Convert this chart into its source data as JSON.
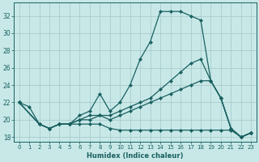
{
  "background_color": "#c8e8e8",
  "grid_color": "#a8cccc",
  "line_color": "#1a6060",
  "xlabel": "Humidex (Indice chaleur)",
  "xlim": [
    -0.5,
    23.5
  ],
  "ylim": [
    17.5,
    33.5
  ],
  "yticks": [
    18,
    20,
    22,
    24,
    26,
    28,
    30,
    32
  ],
  "xticks": [
    0,
    1,
    2,
    3,
    4,
    5,
    6,
    7,
    8,
    9,
    10,
    11,
    12,
    13,
    14,
    15,
    16,
    17,
    18,
    19,
    20,
    21,
    22,
    23
  ],
  "series": [
    {
      "x": [
        0,
        1,
        2,
        3,
        4,
        5,
        6,
        7,
        8,
        9,
        10,
        11,
        12,
        13,
        14,
        15,
        16,
        17,
        18,
        19,
        20,
        21,
        22,
        23
      ],
      "y": [
        22.0,
        21.5,
        19.5,
        19.0,
        19.5,
        19.5,
        20.5,
        21.0,
        23.0,
        21.0,
        22.0,
        24.0,
        27.0,
        29.0,
        32.5,
        32.5,
        32.5,
        32.0,
        31.5,
        24.5,
        22.5,
        19.0,
        18.0,
        18.5
      ]
    },
    {
      "x": [
        0,
        2,
        3,
        4,
        5,
        6,
        7,
        8,
        9,
        10,
        11,
        12,
        13,
        14,
        15,
        16,
        17,
        18,
        19,
        20,
        21,
        22,
        23
      ],
      "y": [
        22.0,
        19.5,
        19.0,
        19.5,
        19.5,
        20.0,
        20.5,
        20.5,
        20.5,
        21.0,
        21.5,
        22.0,
        22.5,
        23.5,
        24.5,
        25.5,
        26.5,
        27.0,
        24.5,
        22.5,
        19.0,
        18.0,
        18.5
      ]
    },
    {
      "x": [
        0,
        2,
        3,
        4,
        5,
        6,
        7,
        8,
        9,
        10,
        11,
        12,
        13,
        14,
        15,
        16,
        17,
        18,
        19,
        20,
        21,
        22,
        23
      ],
      "y": [
        22.0,
        19.5,
        19.0,
        19.5,
        19.5,
        19.5,
        19.5,
        19.5,
        19.0,
        18.8,
        18.8,
        18.8,
        18.8,
        18.8,
        18.8,
        18.8,
        18.8,
        18.8,
        18.8,
        18.8,
        18.8,
        18.0,
        18.5
      ]
    },
    {
      "x": [
        0,
        2,
        3,
        4,
        5,
        6,
        7,
        8,
        9,
        10,
        11,
        12,
        13,
        14,
        15,
        16,
        17,
        18,
        19,
        20,
        21,
        22,
        23
      ],
      "y": [
        22.0,
        19.5,
        19.0,
        19.5,
        19.5,
        20.0,
        20.0,
        20.5,
        20.0,
        20.5,
        21.0,
        21.5,
        22.0,
        22.5,
        23.0,
        23.5,
        24.0,
        24.5,
        24.5,
        22.5,
        19.0,
        18.0,
        18.5
      ]
    }
  ]
}
